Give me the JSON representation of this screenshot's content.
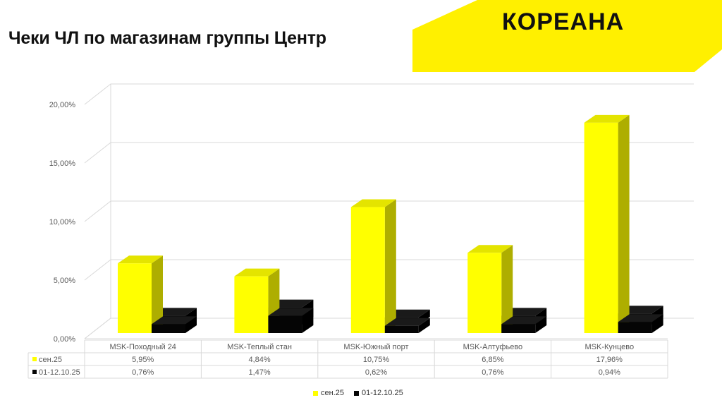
{
  "page": {
    "title": "Чеки ЧЛ по магазинам группы Центр",
    "brand": "КОРЕАНА"
  },
  "colors": {
    "brand_yellow": "#FFF000",
    "series1_front": "#FFFF00",
    "series1_side": "#AEAE00",
    "series1_top": "#E4E400",
    "series2_front": "#050505",
    "series2_side": "#000000",
    "series2_top": "#1A1A1A"
  },
  "chart_data": {
    "type": "bar",
    "title": "",
    "xlabel": "",
    "ylabel": "",
    "ylim": [
      0,
      20
    ],
    "y_ticks": [
      "0,00%",
      "5,00%",
      "10,00%",
      "15,00%",
      "20,00%"
    ],
    "grid": true,
    "legend_position": "bottom",
    "categories": [
      "MSK-Походный 24",
      "MSK-Теплый стан",
      "MSK-Южный порт",
      "MSK-Алтуфьево",
      "MSK-Кунцево"
    ],
    "series": [
      {
        "name": "сен.25",
        "values": [
          5.95,
          4.84,
          10.75,
          6.85,
          17.96
        ],
        "labels": [
          "5,95%",
          "4,84%",
          "10,75%",
          "6,85%",
          "17,96%"
        ]
      },
      {
        "name": "01-12.10.25",
        "values": [
          0.76,
          1.47,
          0.62,
          0.76,
          0.94
        ],
        "labels": [
          "0,76%",
          "1,47%",
          "0,62%",
          "0,76%",
          "0,94%"
        ]
      }
    ]
  }
}
